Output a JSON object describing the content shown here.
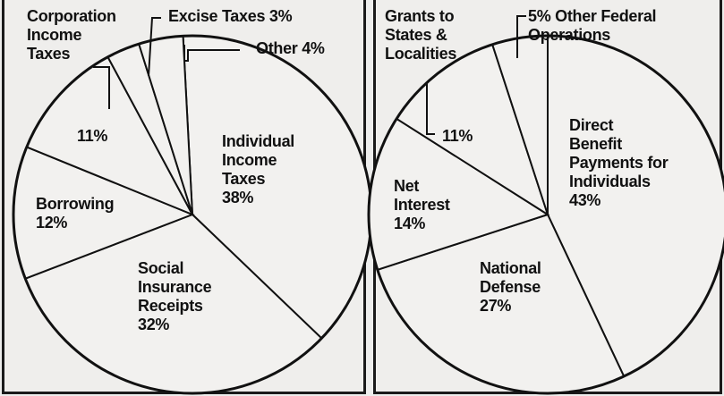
{
  "chart_data": [
    {
      "type": "pie",
      "slices": [
        {
          "label": "Individual Income Taxes",
          "value": 38,
          "pct": "38%",
          "lines": [
            "Individual",
            "Income",
            "Taxes",
            "38%"
          ]
        },
        {
          "label": "Social Insurance Receipts",
          "value": 32,
          "pct": "32%",
          "lines": [
            "Social",
            "Insurance",
            "Receipts",
            "32%"
          ]
        },
        {
          "label": "Borrowing",
          "value": 12,
          "pct": "12%",
          "lines": [
            "Borrowing",
            "12%"
          ]
        },
        {
          "label": "Corporation Income Taxes",
          "value": 11,
          "pct": "11%",
          "lines": [
            "Corporation",
            "Income",
            "Taxes",
            "11%"
          ]
        },
        {
          "label": "Excise Taxes",
          "value": 3,
          "pct": "3%",
          "lines": [
            "Excise Taxes 3%"
          ]
        },
        {
          "label": "Other",
          "value": 4,
          "pct": "4%",
          "lines": [
            "Other 4%"
          ]
        }
      ]
    },
    {
      "type": "pie",
      "slices": [
        {
          "label": "Direct Benefit Payments for Individuals",
          "value": 43,
          "pct": "43%",
          "lines": [
            "Direct",
            "Benefit",
            "Payments for",
            "Individuals",
            "43%"
          ]
        },
        {
          "label": "National Defense",
          "value": 27,
          "pct": "27%",
          "lines": [
            "National",
            "Defense",
            "27%"
          ]
        },
        {
          "label": "Net Interest",
          "value": 14,
          "pct": "14%",
          "lines": [
            "Net",
            "Interest",
            "14%"
          ]
        },
        {
          "label": "Grants to States & Localities",
          "value": 11,
          "pct": "11%",
          "lines": [
            "Grants to",
            "States &",
            "Localities",
            "11%"
          ]
        },
        {
          "label": "Other Federal Operations",
          "value": 5,
          "pct": "5%",
          "lines": [
            "5% Other Federal",
            "Operations"
          ]
        }
      ]
    }
  ],
  "colors": {
    "ink": "#111111",
    "paper": "#efeeec"
  }
}
